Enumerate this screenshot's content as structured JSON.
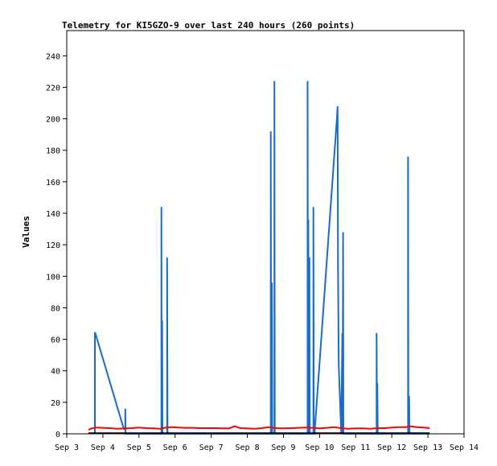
{
  "chart_data": {
    "type": "line",
    "title": "Telemetry for KI5GZO-9 over last 240 hours (260 points)",
    "xlabel": "",
    "ylabel": "Values",
    "xlim": [
      0,
      11
    ],
    "ylim": [
      0,
      256
    ],
    "x_ticks": [
      {
        "x": 0,
        "label": "Sep 3"
      },
      {
        "x": 1,
        "label": "Sep 4"
      },
      {
        "x": 2,
        "label": "Sep 5"
      },
      {
        "x": 3,
        "label": "Sep 6"
      },
      {
        "x": 4,
        "label": "Sep 7"
      },
      {
        "x": 5,
        "label": "Sep 8"
      },
      {
        "x": 6,
        "label": "Sep 9"
      },
      {
        "x": 7,
        "label": "Sep 10"
      },
      {
        "x": 8,
        "label": "Sep 11"
      },
      {
        "x": 9,
        "label": "Sep 12"
      },
      {
        "x": 10,
        "label": "Sep 13"
      },
      {
        "x": 11,
        "label": "Sep 14"
      }
    ],
    "y_ticks": [
      0,
      20,
      40,
      60,
      80,
      100,
      120,
      140,
      160,
      180,
      200,
      220,
      240
    ],
    "grid": false,
    "legend": "none",
    "series": [
      {
        "color": "#1a6cc4",
        "points": [
          [
            0.78,
            0
          ],
          [
            0.78,
            64
          ],
          [
            0.79,
            64
          ],
          [
            1.58,
            3
          ],
          [
            1.62,
            3
          ],
          [
            1.62,
            16
          ],
          [
            1.63,
            0
          ],
          [
            2.1,
            0
          ],
          [
            2.62,
            0
          ],
          [
            2.62,
            144
          ],
          [
            2.63,
            0
          ],
          [
            2.64,
            72
          ],
          [
            2.65,
            0
          ],
          [
            2.78,
            0
          ],
          [
            2.78,
            112
          ],
          [
            2.79,
            0
          ],
          [
            5.0,
            0
          ],
          [
            5.65,
            0
          ],
          [
            5.65,
            192
          ],
          [
            5.66,
            0
          ],
          [
            5.68,
            96
          ],
          [
            5.69,
            0
          ],
          [
            5.75,
            0
          ],
          [
            5.75,
            224
          ],
          [
            5.76,
            0
          ],
          [
            6.6,
            0
          ],
          [
            6.67,
            0
          ],
          [
            6.67,
            224
          ],
          [
            6.68,
            0
          ],
          [
            6.69,
            136
          ],
          [
            6.7,
            0
          ],
          [
            6.72,
            112
          ],
          [
            6.73,
            0
          ],
          [
            6.83,
            0
          ],
          [
            6.83,
            144
          ],
          [
            6.84,
            0
          ],
          [
            6.86,
            0
          ],
          [
            7.48,
            200
          ],
          [
            7.5,
            208
          ],
          [
            7.51,
            104
          ],
          [
            7.53,
            44
          ],
          [
            7.6,
            0
          ],
          [
            7.63,
            64
          ],
          [
            7.64,
            0
          ],
          [
            7.65,
            128
          ],
          [
            7.66,
            0
          ],
          [
            8.0,
            0
          ],
          [
            8.5,
            0
          ],
          [
            8.58,
            0
          ],
          [
            8.58,
            64
          ],
          [
            8.59,
            0
          ],
          [
            8.6,
            32
          ],
          [
            8.61,
            0
          ],
          [
            9.0,
            0
          ],
          [
            9.45,
            0
          ],
          [
            9.45,
            176
          ],
          [
            9.46,
            0
          ],
          [
            9.48,
            24
          ],
          [
            9.49,
            0
          ],
          [
            10.05,
            0
          ]
        ]
      },
      {
        "color": "#ff0000",
        "points": [
          [
            0.6,
            2.5
          ],
          [
            0.7,
            3.5
          ],
          [
            0.8,
            4
          ],
          [
            1.0,
            3.8
          ],
          [
            1.2,
            3.6
          ],
          [
            1.4,
            3.2
          ],
          [
            1.6,
            3.4
          ],
          [
            1.8,
            3.6
          ],
          [
            2.0,
            4
          ],
          [
            2.2,
            3.6
          ],
          [
            2.4,
            3.4
          ],
          [
            2.6,
            3.2
          ],
          [
            2.75,
            4
          ],
          [
            2.9,
            4.2
          ],
          [
            3.1,
            4
          ],
          [
            3.3,
            3.8
          ],
          [
            3.5,
            3.8
          ],
          [
            3.7,
            3.6
          ],
          [
            3.9,
            3.6
          ],
          [
            4.1,
            3.6
          ],
          [
            4.3,
            3.4
          ],
          [
            4.5,
            3.5
          ],
          [
            4.65,
            4.8
          ],
          [
            4.8,
            3.6
          ],
          [
            5.0,
            3.4
          ],
          [
            5.2,
            3.2
          ],
          [
            5.4,
            3.6
          ],
          [
            5.6,
            4.2
          ],
          [
            5.8,
            3.6
          ],
          [
            6.0,
            3.4
          ],
          [
            6.2,
            3.6
          ],
          [
            6.4,
            3.8
          ],
          [
            6.6,
            4
          ],
          [
            6.8,
            3.8
          ],
          [
            7.0,
            3.4
          ],
          [
            7.2,
            3.8
          ],
          [
            7.4,
            4.2
          ],
          [
            7.6,
            3.6
          ],
          [
            7.8,
            3.2
          ],
          [
            8.0,
            3.4
          ],
          [
            8.2,
            3.4
          ],
          [
            8.4,
            3.2
          ],
          [
            8.6,
            3.6
          ],
          [
            8.8,
            3.6
          ],
          [
            9.0,
            4
          ],
          [
            9.2,
            4.2
          ],
          [
            9.4,
            4.2
          ],
          [
            9.5,
            4.8
          ],
          [
            9.7,
            4.2
          ],
          [
            9.9,
            4
          ],
          [
            10.05,
            3.6
          ]
        ]
      },
      {
        "color": "#000000",
        "points": [
          [
            0.6,
            0.4
          ],
          [
            10.05,
            0.4
          ]
        ]
      }
    ]
  }
}
